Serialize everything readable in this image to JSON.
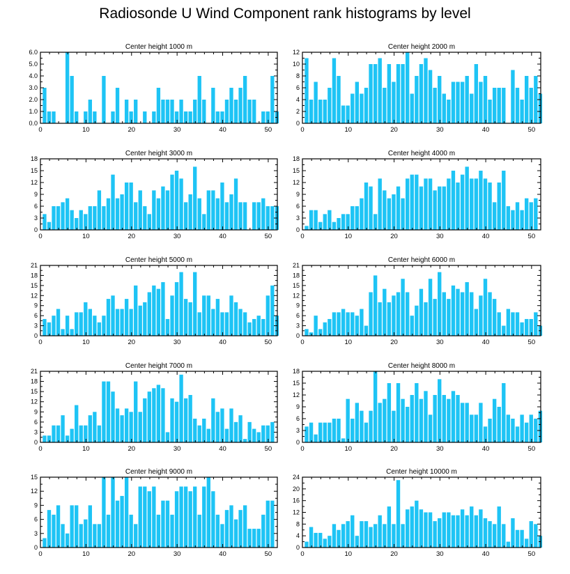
{
  "title": "Radiosonde U Wind Component rank histograms by level",
  "colors": {
    "bar": "#1ec4f5",
    "axis": "#000000",
    "background": "#ffffff"
  },
  "chart_data": [
    {
      "type": "bar",
      "title": "Center height 1000 m",
      "ylim": [
        0,
        6
      ],
      "yticks": [
        0,
        1,
        2,
        3,
        4,
        5,
        6
      ],
      "ytick_labels": [
        "0.0",
        "1.0",
        "2.0",
        "3.0",
        "4.0",
        "5.0",
        "6.0"
      ],
      "xlim": [
        0,
        52
      ],
      "xticks": [
        0,
        10,
        20,
        30,
        40,
        50
      ],
      "values": [
        3,
        1,
        1,
        0,
        0,
        6,
        4,
        1,
        0,
        1,
        2,
        1,
        0,
        4,
        0,
        1,
        3,
        0,
        2,
        1,
        2,
        0,
        1,
        0,
        1,
        3,
        2,
        2,
        2,
        1,
        2,
        1,
        1,
        2,
        4,
        2,
        0,
        3,
        1,
        1,
        2,
        3,
        2,
        3,
        4,
        2,
        2,
        0,
        1,
        1,
        4,
        1
      ]
    },
    {
      "type": "bar",
      "title": "Center height 2000 m",
      "ylim": [
        0,
        12
      ],
      "yticks": [
        0,
        2,
        4,
        6,
        8,
        10,
        12
      ],
      "ytick_labels": [
        "0",
        "2",
        "4",
        "6",
        "8",
        "10",
        "12"
      ],
      "xlim": [
        0,
        52
      ],
      "xticks": [
        0,
        10,
        20,
        30,
        40,
        50
      ],
      "values": [
        11,
        4,
        7,
        4,
        4,
        6,
        11,
        8,
        3,
        3,
        5,
        7,
        5,
        6,
        10,
        10,
        11,
        6,
        10,
        7,
        10,
        10,
        12,
        5,
        8,
        10,
        11,
        9,
        6,
        8,
        5,
        4,
        7,
        7,
        7,
        8,
        5,
        10,
        7,
        8,
        4,
        6,
        6,
        6,
        0,
        9,
        6,
        4,
        8,
        6,
        8,
        5
      ]
    },
    {
      "type": "bar",
      "title": "Center height 3000 m",
      "ylim": [
        0,
        18
      ],
      "yticks": [
        0,
        3,
        6,
        9,
        12,
        15,
        18
      ],
      "ytick_labels": [
        "0",
        "3",
        "6",
        "9",
        "12",
        "15",
        "18"
      ],
      "xlim": [
        0,
        52
      ],
      "xticks": [
        0,
        10,
        20,
        30,
        40,
        50
      ],
      "values": [
        4,
        2,
        6,
        6,
        7,
        8,
        5,
        3,
        5,
        4,
        6,
        6,
        10,
        6,
        8,
        14,
        8,
        9,
        12,
        12,
        7,
        10,
        6,
        4,
        10,
        8,
        11,
        10,
        14,
        15,
        13,
        7,
        9,
        16,
        8,
        4,
        10,
        10,
        8,
        12,
        7,
        9,
        13,
        7,
        7,
        0,
        7,
        7,
        8,
        6,
        6,
        6
      ]
    },
    {
      "type": "bar",
      "title": "Center height 4000 m",
      "ylim": [
        0,
        18
      ],
      "yticks": [
        0,
        3,
        6,
        9,
        12,
        15,
        18
      ],
      "ytick_labels": [
        "0",
        "3",
        "6",
        "9",
        "12",
        "15",
        "18"
      ],
      "xlim": [
        0,
        52
      ],
      "xticks": [
        0,
        10,
        20,
        30,
        40,
        50
      ],
      "values": [
        1,
        5,
        5,
        2,
        4,
        5,
        2,
        3,
        4,
        4,
        6,
        6,
        8,
        12,
        11,
        4,
        13,
        10,
        8,
        9,
        11,
        8,
        13,
        14,
        14,
        11,
        13,
        13,
        10,
        11,
        11,
        13,
        15,
        12,
        14,
        16,
        13,
        13,
        15,
        13,
        12,
        7,
        12,
        15,
        6,
        5,
        7,
        5,
        8,
        7,
        8,
        0
      ]
    },
    {
      "type": "bar",
      "title": "Center height 5000 m",
      "ylim": [
        0,
        21
      ],
      "yticks": [
        0,
        3,
        6,
        9,
        12,
        15,
        18,
        21
      ],
      "ytick_labels": [
        "0",
        "3",
        "6",
        "9",
        "12",
        "15",
        "18",
        "21"
      ],
      "xlim": [
        0,
        52
      ],
      "xticks": [
        0,
        10,
        20,
        30,
        40,
        50
      ],
      "values": [
        5,
        4,
        6,
        8,
        2,
        6,
        2,
        7,
        7,
        10,
        8,
        6,
        4,
        6,
        11,
        12,
        8,
        8,
        11,
        8,
        15,
        9,
        10,
        13,
        15,
        14,
        16,
        5,
        12,
        16,
        19,
        11,
        10,
        19,
        7,
        12,
        12,
        8,
        11,
        7,
        7,
        12,
        10,
        8,
        7,
        4,
        5,
        6,
        5,
        12,
        15,
        6
      ]
    },
    {
      "type": "bar",
      "title": "Center height 6000 m",
      "ylim": [
        0,
        21
      ],
      "yticks": [
        0,
        3,
        6,
        9,
        12,
        15,
        18,
        21
      ],
      "ytick_labels": [
        "0",
        "3",
        "6",
        "9",
        "12",
        "15",
        "18",
        "21"
      ],
      "xlim": [
        0,
        52
      ],
      "xticks": [
        0,
        10,
        20,
        30,
        40,
        50
      ],
      "values": [
        2,
        1,
        6,
        2,
        4,
        5,
        7,
        7,
        8,
        7,
        7,
        6,
        8,
        3,
        13,
        18,
        10,
        14,
        10,
        12,
        13,
        17,
        13,
        6,
        9,
        14,
        10,
        17,
        11,
        19,
        13,
        11,
        15,
        14,
        13,
        16,
        13,
        8,
        12,
        17,
        13,
        11,
        7,
        3,
        8,
        7,
        7,
        4,
        5,
        5,
        7,
        3
      ]
    },
    {
      "type": "bar",
      "title": "Center height 7000 m",
      "ylim": [
        0,
        21
      ],
      "yticks": [
        0,
        3,
        6,
        9,
        12,
        15,
        18,
        21
      ],
      "ytick_labels": [
        "0",
        "3",
        "6",
        "9",
        "12",
        "15",
        "18",
        "21"
      ],
      "xlim": [
        0,
        52
      ],
      "xticks": [
        0,
        10,
        20,
        30,
        40,
        50
      ],
      "values": [
        2,
        2,
        5,
        5,
        8,
        2,
        4,
        11,
        5,
        5,
        8,
        9,
        5,
        18,
        18,
        15,
        10,
        8,
        10,
        9,
        18,
        9,
        13,
        15,
        16,
        17,
        16,
        3,
        13,
        12,
        20,
        13,
        14,
        7,
        5,
        7,
        4,
        13,
        9,
        10,
        4,
        10,
        6,
        8,
        1,
        6,
        4,
        3,
        5,
        5,
        6,
        0
      ]
    },
    {
      "type": "bar",
      "title": "Center height 8000 m",
      "ylim": [
        0,
        18
      ],
      "yticks": [
        0,
        3,
        6,
        9,
        12,
        15,
        18
      ],
      "ytick_labels": [
        "0",
        "3",
        "6",
        "9",
        "12",
        "15",
        "18"
      ],
      "xlim": [
        0,
        52
      ],
      "xticks": [
        0,
        10,
        20,
        30,
        40,
        50
      ],
      "values": [
        4,
        5,
        2,
        5,
        5,
        5,
        6,
        6,
        1,
        11,
        6,
        10,
        8,
        5,
        8,
        18,
        10,
        11,
        15,
        8,
        15,
        11,
        9,
        12,
        15,
        11,
        13,
        7,
        12,
        16,
        12,
        11,
        13,
        12,
        10,
        10,
        7,
        7,
        10,
        4,
        6,
        11,
        9,
        15,
        7,
        6,
        4,
        7,
        5,
        7,
        6,
        8
      ]
    },
    {
      "type": "bar",
      "title": "Center height 9000 m",
      "ylim": [
        0,
        15
      ],
      "yticks": [
        0,
        3,
        6,
        9,
        12,
        15
      ],
      "ytick_labels": [
        "0",
        "3",
        "6",
        "9",
        "12",
        "15"
      ],
      "xlim": [
        0,
        52
      ],
      "xticks": [
        0,
        10,
        20,
        30,
        40,
        50
      ],
      "values": [
        2,
        8,
        7,
        9,
        5,
        3,
        9,
        9,
        5,
        6,
        9,
        5,
        5,
        15,
        7,
        15,
        10,
        11,
        15,
        7,
        5,
        13,
        13,
        12,
        13,
        7,
        10,
        10,
        7,
        12,
        13,
        13,
        12,
        13,
        7,
        13,
        15,
        12,
        7,
        5,
        8,
        9,
        6,
        8,
        9,
        4,
        4,
        4,
        7,
        10,
        10,
        0
      ]
    },
    {
      "type": "bar",
      "title": "Center height 10000 m",
      "ylim": [
        0,
        24
      ],
      "yticks": [
        0,
        4,
        8,
        12,
        16,
        20,
        24
      ],
      "ytick_labels": [
        "0",
        "4",
        "8",
        "12",
        "16",
        "20",
        "24"
      ],
      "xlim": [
        0,
        52
      ],
      "xticks": [
        0,
        10,
        20,
        30,
        40,
        50
      ],
      "values": [
        2,
        7,
        5,
        5,
        3,
        4,
        8,
        6,
        8,
        9,
        11,
        4,
        9,
        9,
        7,
        8,
        11,
        8,
        14,
        8,
        23,
        8,
        13,
        14,
        16,
        13,
        12,
        12,
        9,
        10,
        12,
        12,
        11,
        11,
        13,
        11,
        14,
        11,
        13,
        10,
        9,
        8,
        14,
        8,
        2,
        10,
        6,
        6,
        3,
        9,
        8,
        4
      ]
    }
  ]
}
